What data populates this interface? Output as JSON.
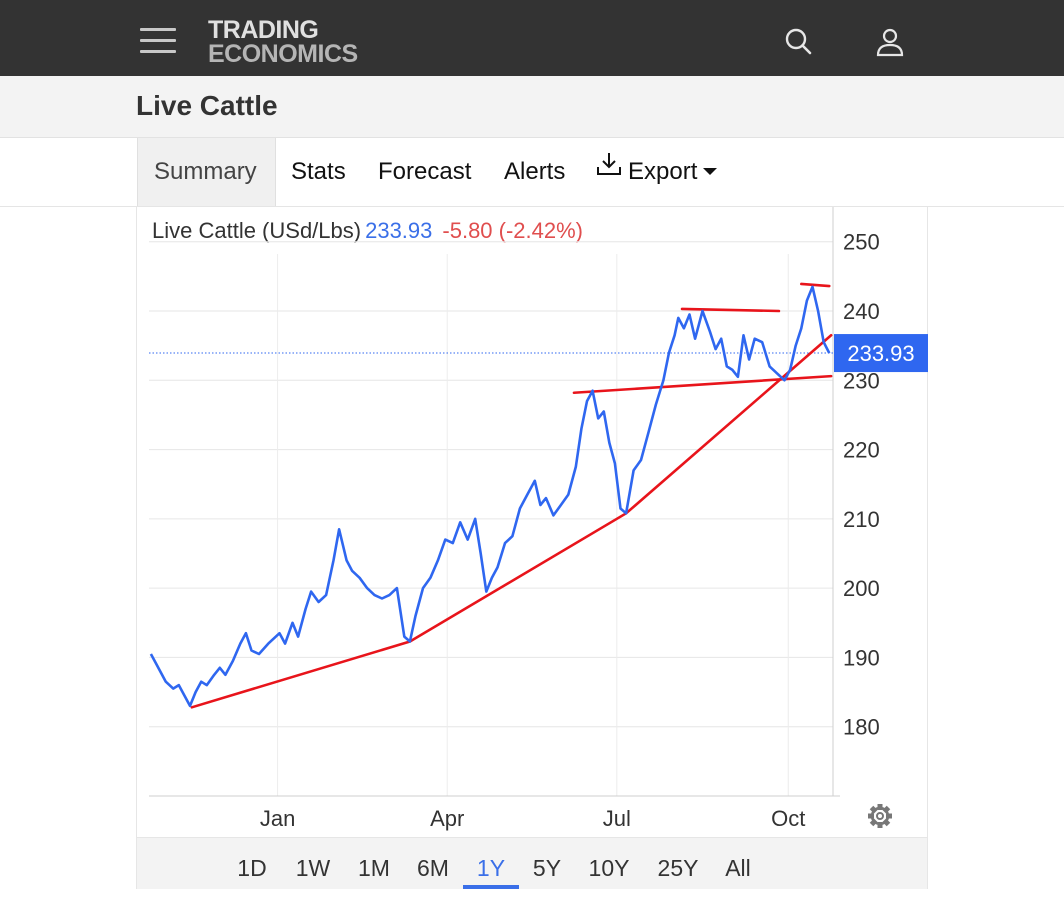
{
  "brand": {
    "line1": "TRADING",
    "line2": "ECONOMICS"
  },
  "page": {
    "title": "Live Cattle"
  },
  "tabs": [
    {
      "label": "Summary",
      "active": true
    },
    {
      "label": "Stats"
    },
    {
      "label": "Forecast"
    },
    {
      "label": "Alerts"
    },
    {
      "label": "Export"
    }
  ],
  "legend": {
    "name": "Live Cattle (USd/Lbs)",
    "price": "233.93",
    "change": "-5.80 (-2.42%)"
  },
  "ranges": [
    "1D",
    "1W",
    "1M",
    "6M",
    "1Y",
    "5Y",
    "10Y",
    "25Y",
    "All"
  ],
  "active_range": "1Y",
  "colors": {
    "line": "#2f67f0",
    "trend": "#e8141b",
    "badge": "#2f67f0",
    "negative": "#e04e4e",
    "topbar": "#333333"
  },
  "icons": {
    "menu": "hamburger-icon",
    "search": "search-icon",
    "user": "user-icon",
    "export": "download-icon",
    "settings": "gear-icon"
  },
  "chart_data": {
    "type": "line",
    "title": "Live Cattle (USd/Lbs)",
    "ylim": [
      170,
      254
    ],
    "xlim": [
      "2023-10-24",
      "2024-10-25"
    ],
    "yticks": [
      180,
      190,
      200,
      210,
      220,
      230,
      240,
      250
    ],
    "xticks": [
      {
        "label": "Jan",
        "date": "2024-01-01"
      },
      {
        "label": "Apr",
        "date": "2024-04-01"
      },
      {
        "label": "Jul",
        "date": "2024-07-01"
      },
      {
        "label": "Oct",
        "date": "2024-10-01"
      }
    ],
    "last_value": 233.93,
    "grid": true,
    "series": [
      {
        "points": [
          [
            "2023-10-25",
            190.5
          ],
          [
            "2023-10-28",
            189.0
          ],
          [
            "2023-11-02",
            186.5
          ],
          [
            "2023-11-06",
            185.5
          ],
          [
            "2023-11-09",
            186.0
          ],
          [
            "2023-11-12",
            184.5
          ],
          [
            "2023-11-15",
            183.0
          ],
          [
            "2023-11-18",
            185.0
          ],
          [
            "2023-11-21",
            186.5
          ],
          [
            "2023-11-24",
            186.0
          ],
          [
            "2023-11-28",
            187.5
          ],
          [
            "2023-12-01",
            188.5
          ],
          [
            "2023-12-04",
            187.5
          ],
          [
            "2023-12-08",
            189.5
          ],
          [
            "2023-12-12",
            192.0
          ],
          [
            "2023-12-15",
            193.5
          ],
          [
            "2023-12-18",
            191.0
          ],
          [
            "2023-12-22",
            190.5
          ],
          [
            "2023-12-27",
            192.0
          ],
          [
            "2024-01-02",
            193.5
          ],
          [
            "2024-01-05",
            192.0
          ],
          [
            "2024-01-09",
            195.0
          ],
          [
            "2024-01-12",
            193.0
          ],
          [
            "2024-01-16",
            197.0
          ],
          [
            "2024-01-19",
            199.5
          ],
          [
            "2024-01-23",
            198.0
          ],
          [
            "2024-01-27",
            199.0
          ],
          [
            "2024-01-31",
            204.0
          ],
          [
            "2024-02-03",
            208.5
          ],
          [
            "2024-02-07",
            204.0
          ],
          [
            "2024-02-10",
            202.5
          ],
          [
            "2024-02-14",
            201.5
          ],
          [
            "2024-02-18",
            200.0
          ],
          [
            "2024-02-22",
            199.0
          ],
          [
            "2024-02-26",
            198.5
          ],
          [
            "2024-03-01",
            199.0
          ],
          [
            "2024-03-05",
            200.0
          ],
          [
            "2024-03-09",
            193.0
          ],
          [
            "2024-03-12",
            192.3
          ],
          [
            "2024-03-15",
            196.0
          ],
          [
            "2024-03-19",
            200.0
          ],
          [
            "2024-03-23",
            201.5
          ],
          [
            "2024-03-27",
            204.0
          ],
          [
            "2024-03-31",
            207.0
          ],
          [
            "2024-04-04",
            206.5
          ],
          [
            "2024-04-08",
            209.5
          ],
          [
            "2024-04-12",
            207.0
          ],
          [
            "2024-04-16",
            210.0
          ],
          [
            "2024-04-19",
            205.0
          ],
          [
            "2024-04-22",
            199.5
          ],
          [
            "2024-04-25",
            201.5
          ],
          [
            "2024-04-28",
            203.0
          ],
          [
            "2024-05-02",
            206.5
          ],
          [
            "2024-05-06",
            207.5
          ],
          [
            "2024-05-10",
            211.5
          ],
          [
            "2024-05-14",
            213.5
          ],
          [
            "2024-05-18",
            215.5
          ],
          [
            "2024-05-21",
            212.0
          ],
          [
            "2024-05-24",
            213.0
          ],
          [
            "2024-05-28",
            210.5
          ],
          [
            "2024-06-01",
            212.0
          ],
          [
            "2024-06-05",
            213.5
          ],
          [
            "2024-06-09",
            217.5
          ],
          [
            "2024-06-12",
            223.0
          ],
          [
            "2024-06-15",
            227.0
          ],
          [
            "2024-06-18",
            228.5
          ],
          [
            "2024-06-21",
            224.5
          ],
          [
            "2024-06-24",
            225.5
          ],
          [
            "2024-06-27",
            221.0
          ],
          [
            "2024-06-30",
            218.0
          ],
          [
            "2024-07-03",
            211.5
          ],
          [
            "2024-07-06",
            210.8
          ],
          [
            "2024-07-10",
            217.0
          ],
          [
            "2024-07-14",
            218.5
          ],
          [
            "2024-07-18",
            222.5
          ],
          [
            "2024-07-22",
            226.5
          ],
          [
            "2024-07-26",
            230.0
          ],
          [
            "2024-07-29",
            234.0
          ],
          [
            "2024-08-01",
            236.5
          ],
          [
            "2024-08-03",
            239.0
          ],
          [
            "2024-08-06",
            237.5
          ],
          [
            "2024-08-09",
            239.5
          ],
          [
            "2024-08-12",
            236.0
          ],
          [
            "2024-08-16",
            240.0
          ],
          [
            "2024-08-20",
            237.0
          ],
          [
            "2024-08-23",
            234.5
          ],
          [
            "2024-08-26",
            236.0
          ],
          [
            "2024-08-29",
            232.0
          ],
          [
            "2024-09-01",
            231.5
          ],
          [
            "2024-09-04",
            230.5
          ],
          [
            "2024-09-07",
            236.5
          ],
          [
            "2024-09-10",
            233.0
          ],
          [
            "2024-09-13",
            236.0
          ],
          [
            "2024-09-17",
            235.5
          ],
          [
            "2024-09-21",
            232.0
          ],
          [
            "2024-09-25",
            231.0
          ],
          [
            "2024-09-29",
            230.0
          ],
          [
            "2024-10-02",
            231.5
          ],
          [
            "2024-10-05",
            235.0
          ],
          [
            "2024-10-08",
            237.5
          ],
          [
            "2024-10-11",
            241.5
          ],
          [
            "2024-10-14",
            243.5
          ],
          [
            "2024-10-17",
            240.0
          ],
          [
            "2024-10-20",
            235.5
          ],
          [
            "2024-10-23",
            233.93
          ]
        ]
      }
    ],
    "annotations": [
      {
        "type": "trendline",
        "from": [
          "2023-11-16",
          182.8
        ],
        "to": [
          "2024-03-12",
          192.3
        ]
      },
      {
        "type": "trendline",
        "from": [
          "2024-03-12",
          192.3
        ],
        "to": [
          "2024-07-06",
          210.8
        ]
      },
      {
        "type": "trendline",
        "from": [
          "2024-07-06",
          210.8
        ],
        "to": [
          "2024-10-24",
          236.5
        ]
      },
      {
        "type": "trendline",
        "from": [
          "2024-06-08",
          228.2
        ],
        "to": [
          "2024-10-24",
          230.6
        ]
      },
      {
        "type": "trendline",
        "from": [
          "2024-08-05",
          240.3
        ],
        "to": [
          "2024-09-26",
          240.0
        ]
      },
      {
        "type": "trendline",
        "from": [
          "2024-10-08",
          243.9
        ],
        "to": [
          "2024-10-23",
          243.6
        ]
      }
    ]
  }
}
